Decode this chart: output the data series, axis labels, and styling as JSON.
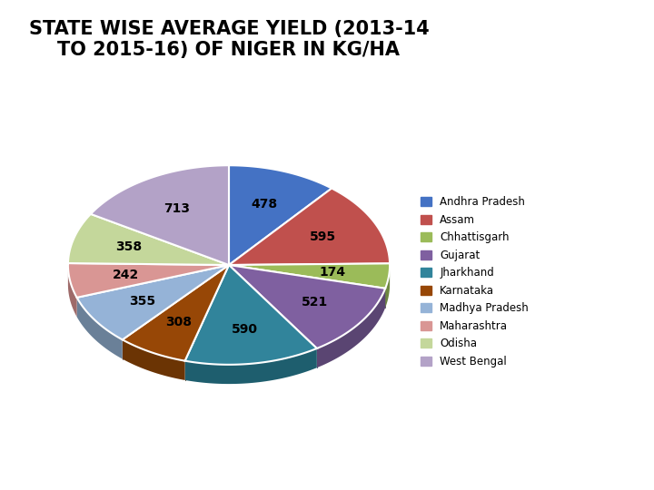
{
  "title": "STATE WISE AVERAGE YIELD (2013-14\nTO 2015-16) OF NIGER IN KG/HA",
  "labels": [
    "Andhra Pradesh",
    "Assam",
    "Chhattisgarh",
    "Gujarat",
    "Jharkhand",
    "Karnataka",
    "Madhya Pradesh",
    "Maharashtra",
    "Odisha",
    "West Bengal"
  ],
  "values": [
    478,
    595,
    174,
    521,
    590,
    308,
    355,
    242,
    358,
    713
  ],
  "colors": [
    "#4472C4",
    "#C0504D",
    "#9BBB59",
    "#7F60A0",
    "#31849B",
    "#974706",
    "#95B3D7",
    "#D99694",
    "#C4D79B",
    "#B3A2C7"
  ],
  "dark_colors": [
    "#2E4F8A",
    "#8B3A39",
    "#6D8740",
    "#5A4572",
    "#1E5E6E",
    "#6B3404",
    "#6A8098",
    "#9E6A69",
    "#8E9B6F",
    "#7F7190"
  ],
  "title_fontsize": 15,
  "label_fontsize": 10,
  "depth": 0.12,
  "background": "#FFFFFF"
}
